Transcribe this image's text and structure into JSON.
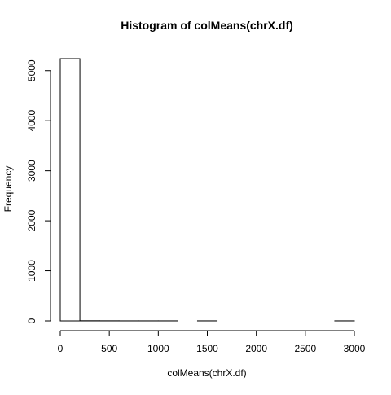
{
  "chart_data": {
    "type": "bar",
    "title": "Histogram of colMeans(chrX.df)",
    "xlabel": "colMeans(chrX.df)",
    "ylabel": "Frequency",
    "xlim": [
      0,
      3000
    ],
    "ylim": [
      0,
      5240
    ],
    "x_ticks": [
      0,
      500,
      1000,
      1500,
      2000,
      2500,
      3000
    ],
    "y_ticks": [
      0,
      1000,
      2000,
      3000,
      4000,
      5000
    ],
    "bin_width": 200,
    "bins": [
      {
        "start": 0,
        "end": 200,
        "count": 5240
      },
      {
        "start": 200,
        "end": 400,
        "count": 3
      },
      {
        "start": 400,
        "end": 600,
        "count": 2
      },
      {
        "start": 600,
        "end": 800,
        "count": 1
      },
      {
        "start": 800,
        "end": 1000,
        "count": 1
      },
      {
        "start": 1000,
        "end": 1200,
        "count": 1
      },
      {
        "start": 1200,
        "end": 1400,
        "count": 0
      },
      {
        "start": 1400,
        "end": 1600,
        "count": 1
      },
      {
        "start": 1600,
        "end": 1800,
        "count": 0
      },
      {
        "start": 1800,
        "end": 2000,
        "count": 0
      },
      {
        "start": 2000,
        "end": 2200,
        "count": 0
      },
      {
        "start": 2200,
        "end": 2400,
        "count": 0
      },
      {
        "start": 2400,
        "end": 2600,
        "count": 0
      },
      {
        "start": 2600,
        "end": 2800,
        "count": 0
      },
      {
        "start": 2800,
        "end": 3000,
        "count": 1
      }
    ],
    "bar_fill": "#ffffff",
    "bar_stroke": "#000000",
    "grid": false,
    "legend": "none"
  }
}
